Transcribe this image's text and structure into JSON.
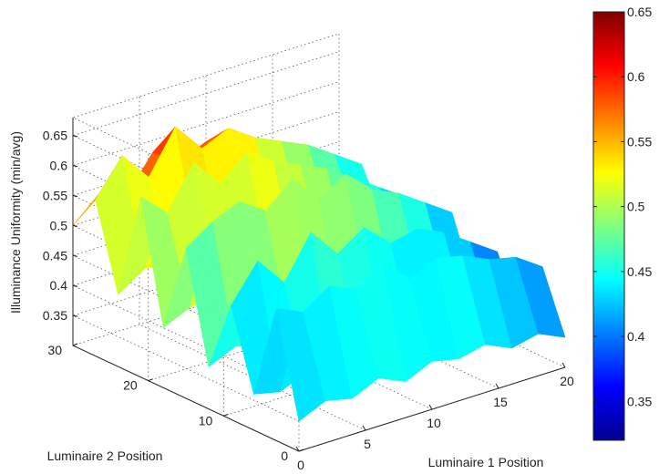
{
  "chart_data": {
    "type": "surface",
    "title": "",
    "xlabel": "Luminaire 1 Position",
    "ylabel": "Luminaire 2 Position",
    "zlabel": "Illuminance Uniformity (min/avg)",
    "xlim": [
      0,
      20
    ],
    "ylim": [
      0,
      30
    ],
    "zlim": [
      0.3,
      0.68
    ],
    "x_ticks": [
      "0",
      "5",
      "10",
      "15",
      "20"
    ],
    "y_ticks": [
      "0",
      "10",
      "20",
      "30"
    ],
    "z_ticks": [
      "0.35",
      "0.4",
      "0.45",
      "0.5",
      "0.55",
      "0.6",
      "0.65"
    ],
    "colorbar": {
      "colormap": "jet",
      "min": 0.32,
      "max": 0.65,
      "ticks": [
        "0.35",
        "0.4",
        "0.45",
        "0.5",
        "0.55",
        "0.6",
        "0.65"
      ]
    },
    "x": [
      0,
      2,
      4,
      6,
      8,
      10,
      12,
      14,
      16,
      18,
      20
    ],
    "y": [
      0,
      3,
      6,
      9,
      12,
      15,
      18,
      21,
      24,
      27,
      30
    ],
    "z": [
      [
        0.35,
        0.37,
        0.36,
        0.38,
        0.36,
        0.38,
        0.37,
        0.38,
        0.36,
        0.37,
        0.35
      ],
      [
        0.52,
        0.5,
        0.53,
        0.51,
        0.54,
        0.5,
        0.52,
        0.51,
        0.49,
        0.48,
        0.45
      ],
      [
        0.36,
        0.35,
        0.37,
        0.36,
        0.38,
        0.36,
        0.37,
        0.36,
        0.38,
        0.36,
        0.35
      ],
      [
        0.49,
        0.55,
        0.5,
        0.57,
        0.52,
        0.55,
        0.51,
        0.52,
        0.5,
        0.47,
        0.44
      ],
      [
        0.37,
        0.39,
        0.38,
        0.4,
        0.41,
        0.4,
        0.41,
        0.39,
        0.4,
        0.38,
        0.36
      ],
      [
        0.55,
        0.58,
        0.6,
        0.57,
        0.61,
        0.56,
        0.59,
        0.55,
        0.53,
        0.5,
        0.47
      ],
      [
        0.4,
        0.42,
        0.43,
        0.41,
        0.44,
        0.43,
        0.44,
        0.42,
        0.41,
        0.4,
        0.38
      ],
      [
        0.6,
        0.56,
        0.63,
        0.58,
        0.62,
        0.59,
        0.57,
        0.55,
        0.52,
        0.49,
        0.46
      ],
      [
        0.42,
        0.45,
        0.44,
        0.46,
        0.45,
        0.47,
        0.46,
        0.44,
        0.43,
        0.41,
        0.4
      ],
      [
        0.56,
        0.62,
        0.57,
        0.64,
        0.59,
        0.61,
        0.58,
        0.56,
        0.54,
        0.51,
        0.48
      ],
      [
        0.5,
        0.54,
        0.52,
        0.58,
        0.55,
        0.57,
        0.55,
        0.53,
        0.51,
        0.49,
        0.46
      ]
    ]
  }
}
